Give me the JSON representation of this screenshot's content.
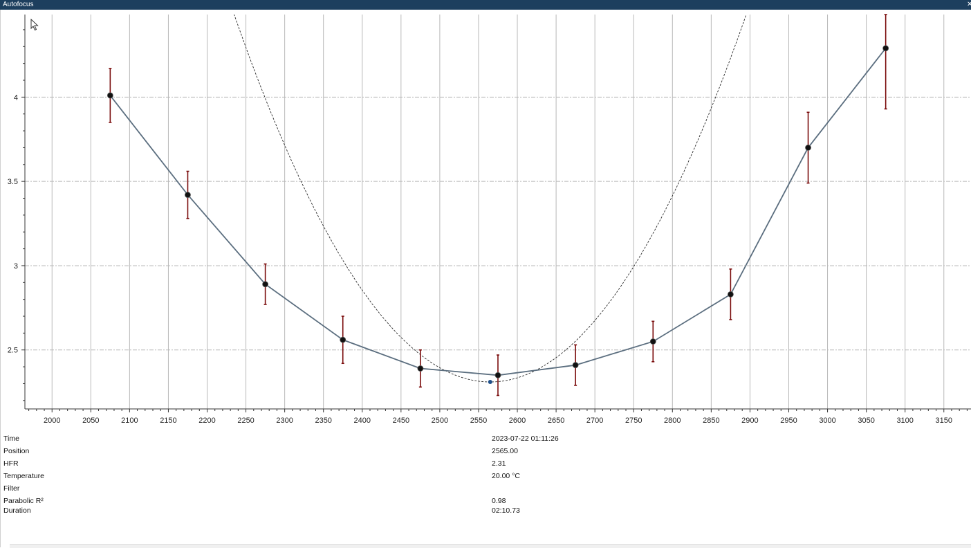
{
  "window": {
    "title": "Autofocus",
    "close_glyph": "✕"
  },
  "chart_data": {
    "type": "scatter",
    "title": "",
    "xlabel": "",
    "ylabel": "",
    "xlim": [
      1965,
      3185
    ],
    "ylim": [
      2.15,
      4.49
    ],
    "x_ticks": [
      2000,
      2050,
      2100,
      2150,
      2200,
      2250,
      2300,
      2350,
      2400,
      2450,
      2500,
      2550,
      2600,
      2650,
      2700,
      2750,
      2800,
      2850,
      2900,
      2950,
      3000,
      3050,
      3100,
      3150
    ],
    "y_ticks": [
      2.5,
      3,
      3.5,
      4
    ],
    "y_tick_labels": [
      "2.5",
      "3",
      "3.5",
      "4"
    ],
    "grid": true,
    "series": [
      {
        "type": "line+errorbar",
        "x": [
          2075,
          2175,
          2275,
          2375,
          2475,
          2575,
          2675,
          2775,
          2875,
          2975,
          3075
        ],
        "y": [
          4.01,
          3.42,
          2.89,
          2.56,
          2.39,
          2.35,
          2.41,
          2.55,
          2.83,
          3.7,
          4.29
        ],
        "err": [
          0.16,
          0.14,
          0.12,
          0.14,
          0.11,
          0.12,
          0.12,
          0.12,
          0.15,
          0.21,
          0.36
        ]
      },
      {
        "type": "parabola-fit",
        "a": 2e-05,
        "vertex_x": 2565,
        "vertex_y": 2.31
      }
    ],
    "focus_point": {
      "x": 2565,
      "y": 2.31
    },
    "colors": {
      "line": "#5b6e7f",
      "error": "#7a0b0b",
      "point": "#111111",
      "focus": "#1e4f8a",
      "grid": "#b8b8b8",
      "fit": "#2a2a2a"
    }
  },
  "info": [
    {
      "label": "Time",
      "value": "2023-07-22 01:11:26"
    },
    {
      "label": "Position",
      "value": "2565.00"
    },
    {
      "label": "HFR",
      "value": "2.31"
    },
    {
      "label": "Temperature",
      "value": "20.00 °C"
    },
    {
      "label": "Filter",
      "value": ""
    },
    {
      "label": "Parabolic R²",
      "value": "0.98"
    },
    {
      "label": "Duration",
      "value": "02:10.73"
    }
  ],
  "icons": {
    "cursor": "mouse-pointer-icon"
  }
}
